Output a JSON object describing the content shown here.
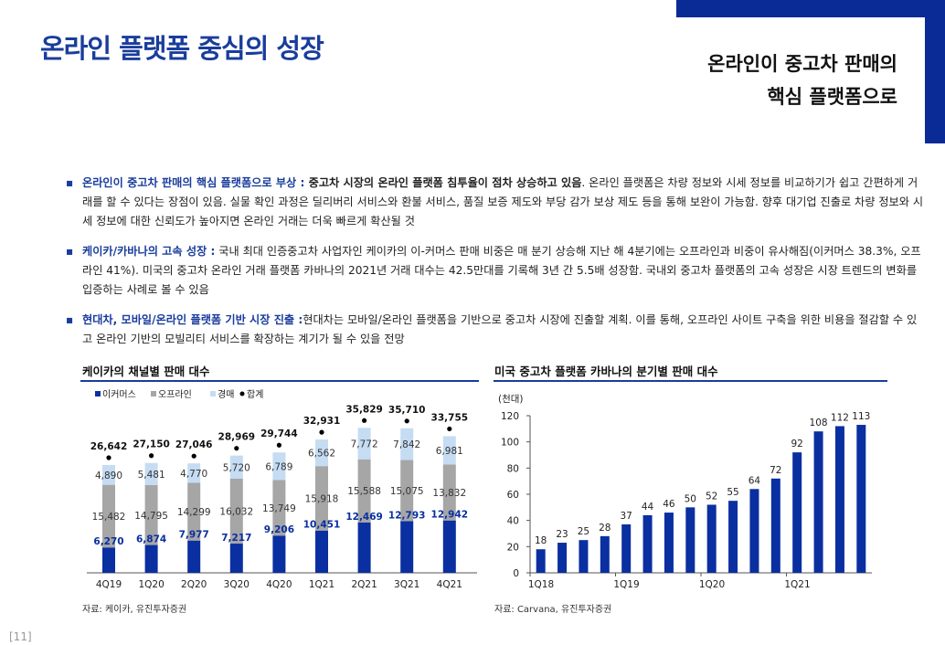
{
  "page": {
    "title": "온라인 플랫폼 중심의 성장",
    "subtitle_line1": "온라인이 중고차 판매의",
    "subtitle_line2": "핵심 플랫폼으로",
    "page_number": "[11]",
    "accent": "#0a2a96"
  },
  "bullets": [
    {
      "head": "온라인이 중고차 판매의 핵심 플랫폼으로 부상 :",
      "bold": " 중고차 시장의 온라인 플랫폼 침투율이 점차 상승하고 있음",
      "body": ". 온라인 플랫폼은 차량 정보와 시세 정보를 비교하기가 쉽고 간편하게 거래를 할 수 있다는 장점이 있음. 실물 확인 과정은 딜리버리 서비스와 환불 서비스, 품질 보증 제도와 부당 감가 보상 제도 등을 통해 보완이 가능함. 향후 대기업 진출로 차량 정보와 시세 정보에 대한 신뢰도가 높아지면 온라인 거래는 더욱 빠르게 확산될 것"
    },
    {
      "head": "케이카/카바나의 고속 성장 :",
      "bold": "",
      "body": " 국내 최대 인증중고차 사업자인 케이카의 이-커머스 판매 비중은 매 분기 상승해 지난 해 4분기에는 오프라인과 비중이 유사해짐(이커머스 38.3%, 오프라인 41%). 미국의 중고차 온라인 거래 플랫폼 카바나의 2021년 거래 대수는 42.5만대를 기록해 3년 간 5.5배 성장함. 국내외 중고차 플랫폼의 고속 성장은 시장 트렌드의 변화를 입증하는 사례로 볼 수 있음"
    },
    {
      "head": "현대차, 모바일/온라인 플랫폼 기반 시장 진출 :",
      "bold": "",
      "body": "현대차는 모바일/온라인 플랫폼을 기반으로 중고차 시장에 진출할 계획. 이를 통해, 오프라인 사이트 구축을 위한 비용을 절감할 수 있고 온라인 기반의 모빌리티 서비스를 확장하는 계기가 될 수 있을 전망"
    }
  ],
  "charts": {
    "left_title": "케이카의 채널별 판매 대수",
    "left_source": "자료: 케이카, 유진투자증권",
    "right_title": "미국 중고차 플랫폼 카바나의 분기별 판매 대수",
    "right_source": "자료: Carvana, 유진투자증권"
  },
  "chart_data": [
    {
      "type": "bar",
      "stacked": true,
      "title": "케이카의 채널별 판매 대수",
      "categories": [
        "4Q19",
        "1Q20",
        "2Q20",
        "3Q20",
        "4Q20",
        "1Q21",
        "2Q21",
        "3Q21",
        "4Q21"
      ],
      "series": [
        {
          "name": "이커머스",
          "color": "#0a2fa0",
          "values": [
            6270,
            6874,
            7977,
            7217,
            9206,
            10451,
            12469,
            12793,
            12942
          ]
        },
        {
          "name": "오프라인",
          "color": "#a6a6a6",
          "values": [
            15482,
            14795,
            14299,
            16032,
            13749,
            15918,
            15588,
            15075,
            13832
          ]
        },
        {
          "name": "경매",
          "color": "#c5dcf3",
          "values": [
            4890,
            5481,
            4770,
            5720,
            6789,
            6562,
            7772,
            7842,
            6981
          ]
        }
      ],
      "totals_name": "합계",
      "totals": [
        26642,
        27150,
        27046,
        28969,
        29744,
        32931,
        35829,
        35710,
        33755
      ],
      "labels": {
        "ecommerce": [
          "6,270",
          "6,874",
          "7,977",
          "7,217",
          "9,206",
          "10,451",
          "12,469",
          "12,793",
          "12,942"
        ],
        "offline": [
          "15,482",
          "14,795",
          "14,299",
          "16,032",
          "13,749",
          "15,918",
          "15,588",
          "15,075",
          "13,832"
        ],
        "auction": [
          "4,890",
          "5,481",
          "4,770",
          "5,720",
          "6,789",
          "6,562",
          "7,772",
          "7,842",
          "6,981"
        ],
        "totals": [
          "26,642",
          "27,150",
          "27,046",
          "28,969",
          "29,744",
          "32,931",
          "35,829",
          "35,710",
          "33,755"
        ]
      },
      "legend": "top-left"
    },
    {
      "type": "bar",
      "title": "미국 중고차 플랫폼 카바나의 분기별 판매 대수",
      "unit": "(천대)",
      "values": [
        18,
        23,
        25,
        28,
        37,
        44,
        46,
        50,
        52,
        55,
        64,
        72,
        92,
        108,
        112,
        113
      ],
      "x_tick_labels": [
        "1Q18",
        "1Q19",
        "1Q20",
        "1Q21"
      ],
      "ylim": [
        0,
        120
      ],
      "yticks": [
        0,
        20,
        40,
        60,
        80,
        100,
        120
      ],
      "color": "#0a2fa0"
    }
  ]
}
